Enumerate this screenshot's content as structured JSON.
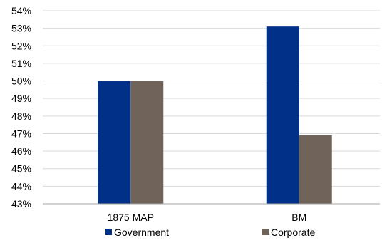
{
  "chart_data": {
    "type": "bar",
    "categories": [
      "1875 MAP",
      "BM"
    ],
    "series": [
      {
        "name": "Government",
        "values": [
          50.0,
          53.1
        ],
        "color": "#003087"
      },
      {
        "name": "Corporate",
        "values": [
          50.0,
          46.9
        ],
        "color": "#70635a"
      }
    ],
    "title": "",
    "xlabel": "",
    "ylabel": "",
    "ylim": [
      43,
      54
    ],
    "yticks": [
      "43%",
      "44%",
      "45%",
      "46%",
      "47%",
      "48%",
      "49%",
      "50%",
      "51%",
      "52%",
      "53%",
      "54%"
    ],
    "grid": true,
    "legend": "bottom"
  }
}
